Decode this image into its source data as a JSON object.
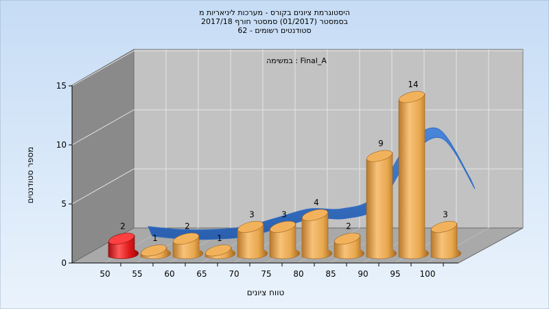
{
  "chart_data": {
    "type": "bar",
    "title_lines": [
      "היסטוגרמת ציונים בקורס - מערכות ליניאריות מ",
      "בסמסטר  (01/2017)  סמסטר חורף 2017/18",
      "סטודנטים רשומים - 62"
    ],
    "annotation": "במשימה : Final_A",
    "xlabel": "טווח ציונים",
    "ylabel": "מספר סטודנטים",
    "x_ticks": [
      "50",
      "55",
      "60",
      "65",
      "70",
      "75",
      "80",
      "85",
      "90",
      "95",
      "100"
    ],
    "y_ticks": [
      "0",
      "5",
      "10",
      "15"
    ],
    "ylim": [
      0,
      15
    ],
    "categories": [
      "50",
      "55",
      "60",
      "65",
      "70",
      "75",
      "80",
      "85",
      "90",
      "95",
      "100"
    ],
    "values": [
      2,
      1,
      2,
      1,
      3,
      3,
      4,
      2,
      9,
      14,
      3
    ],
    "value_labels": [
      "2",
      "1",
      "2",
      "1",
      "3",
      "3",
      "4",
      "2",
      "9",
      "14",
      "3"
    ],
    "highlight_index": 0,
    "curve": "distribution-ribbon",
    "grid": true,
    "colors": {
      "bar": "#E8A84E",
      "bar_highlight": "#E01818",
      "curve": "#2F6CC4",
      "background_top": "#C6DCF5",
      "background_bottom": "#EAF3FC",
      "plot_back": "#C2C2C2",
      "plot_side": "#8A8A8A",
      "plot_floor": "#A9A9A9"
    }
  }
}
